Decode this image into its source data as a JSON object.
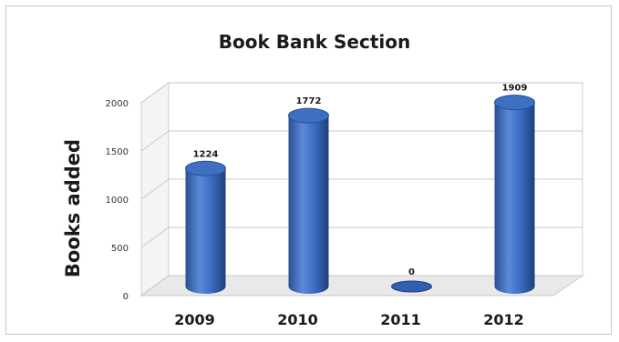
{
  "chart_data": {
    "type": "bar",
    "title": "Book Bank Section",
    "ylabel": "Books added",
    "xlabel": "",
    "categories": [
      "2009",
      "2010",
      "2011",
      "2012"
    ],
    "values": [
      1224,
      1772,
      0,
      1909
    ],
    "data_labels": [
      "1224",
      "1772",
      "0",
      "1909"
    ],
    "ylim": [
      0,
      2000
    ],
    "yticks": [
      0,
      500,
      1000,
      1500,
      2000
    ],
    "ytick_labels": [
      "0",
      "500",
      "1000",
      "1500",
      "2000"
    ],
    "grid": true,
    "legend": "none",
    "style": "3d-cylinder",
    "bar_color": "#2f5fae"
  }
}
